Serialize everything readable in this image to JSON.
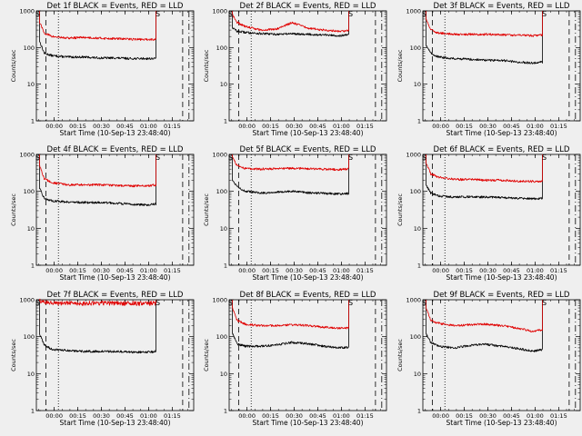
{
  "figure": {
    "common": {
      "ylabel": "Counts/sec",
      "xlabel": "Start Time (10-Sep-13 23:48:40)",
      "x_ticks": [
        "00:00",
        "00:15",
        "00:30",
        "00:45",
        "01:00",
        "01:15"
      ],
      "x_tick_minutes": [
        11.33,
        26.33,
        41.33,
        56.33,
        71.33,
        86.33
      ],
      "y_ticks": [
        "1",
        "10",
        "100",
        "1000"
      ],
      "y_tick_values": [
        1,
        10,
        100,
        1000
      ],
      "xlim_minutes": [
        0,
        100
      ],
      "ylim": [
        1,
        1000
      ],
      "yscale": "log",
      "series_colors": {
        "events": "#000000",
        "lld": "#e00000"
      },
      "marker_label": "S",
      "dashed_line_minutes": [
        6,
        93
      ],
      "dotted_line_minutes": [
        14
      ],
      "dashdot_line_minutes": [
        97
      ],
      "background": "#efefef"
    }
  },
  "chart_data": [
    {
      "type": "line",
      "title": "Det 1f BLACK = Events, RED = LLD",
      "saa_start_min": 2.0,
      "saa_end_min": 76.0,
      "series": [
        {
          "key": "events",
          "x": [
            2,
            5,
            10,
            20,
            30,
            40,
            50,
            60,
            70,
            76
          ],
          "values": [
            150,
            70,
            60,
            55,
            55,
            52,
            52,
            50,
            50,
            50
          ]
        },
        {
          "key": "lld",
          "x": [
            2,
            5,
            10,
            20,
            30,
            40,
            50,
            60,
            70,
            76
          ],
          "values": [
            500,
            250,
            200,
            180,
            190,
            180,
            175,
            170,
            165,
            170
          ]
        }
      ]
    },
    {
      "type": "line",
      "title": "Det 2f BLACK = Events, RED = LLD",
      "saa_start_min": 2.0,
      "saa_end_min": 76.0,
      "series": [
        {
          "key": "events",
          "x": [
            2,
            5,
            10,
            20,
            30,
            40,
            50,
            60,
            70,
            76
          ],
          "values": [
            350,
            280,
            260,
            240,
            230,
            240,
            230,
            220,
            210,
            220
          ]
        },
        {
          "key": "lld",
          "x": [
            2,
            5,
            10,
            20,
            30,
            40,
            50,
            60,
            70,
            76
          ],
          "values": [
            800,
            480,
            380,
            300,
            320,
            480,
            340,
            300,
            280,
            290
          ]
        }
      ]
    },
    {
      "type": "line",
      "title": "Det 3f BLACK = Events, RED = LLD",
      "saa_start_min": 2.0,
      "saa_end_min": 76.0,
      "series": [
        {
          "key": "events",
          "x": [
            2,
            5,
            10,
            20,
            30,
            40,
            50,
            60,
            70,
            76
          ],
          "values": [
            120,
            70,
            55,
            50,
            48,
            45,
            45,
            40,
            38,
            40
          ]
        },
        {
          "key": "lld",
          "x": [
            2,
            5,
            10,
            20,
            30,
            40,
            50,
            60,
            70,
            76
          ],
          "values": [
            600,
            300,
            250,
            230,
            230,
            230,
            220,
            220,
            210,
            220
          ]
        }
      ]
    },
    {
      "type": "line",
      "title": "Det 4f BLACK = Events, RED = LLD",
      "saa_start_min": 2.0,
      "saa_end_min": 76.0,
      "series": [
        {
          "key": "events",
          "x": [
            2,
            5,
            10,
            20,
            30,
            40,
            50,
            60,
            70,
            76
          ],
          "values": [
            120,
            65,
            55,
            52,
            50,
            50,
            48,
            45,
            43,
            45
          ]
        },
        {
          "key": "lld",
          "x": [
            2,
            5,
            10,
            20,
            30,
            40,
            50,
            60,
            70,
            76
          ],
          "values": [
            500,
            220,
            170,
            150,
            150,
            150,
            145,
            140,
            140,
            150
          ]
        }
      ]
    },
    {
      "type": "line",
      "title": "Det 5f BLACK = Events, RED = LLD",
      "saa_start_min": 2.0,
      "saa_end_min": 76.0,
      "series": [
        {
          "key": "events",
          "x": [
            2,
            5,
            10,
            20,
            30,
            40,
            50,
            60,
            70,
            76
          ],
          "values": [
            200,
            140,
            100,
            90,
            95,
            100,
            92,
            88,
            85,
            88
          ]
        },
        {
          "key": "lld",
          "x": [
            2,
            5,
            10,
            20,
            30,
            40,
            50,
            60,
            70,
            76
          ],
          "values": [
            900,
            500,
            420,
            400,
            410,
            420,
            410,
            400,
            390,
            400
          ]
        }
      ]
    },
    {
      "type": "line",
      "title": "Det 6f BLACK = Events, RED = LLD",
      "saa_start_min": 2.0,
      "saa_end_min": 76.0,
      "series": [
        {
          "key": "events",
          "x": [
            2,
            5,
            10,
            20,
            30,
            40,
            50,
            60,
            70,
            76
          ],
          "values": [
            150,
            90,
            75,
            70,
            72,
            70,
            68,
            65,
            63,
            65
          ]
        },
        {
          "key": "lld",
          "x": [
            2,
            5,
            10,
            20,
            30,
            40,
            50,
            60,
            70,
            76
          ],
          "values": [
            600,
            300,
            240,
            210,
            210,
            200,
            200,
            190,
            185,
            190
          ]
        }
      ]
    },
    {
      "type": "line",
      "title": "Det 7f BLACK = Events, RED = LLD",
      "saa_start_min": 2.0,
      "saa_end_min": 76.0,
      "series": [
        {
          "key": "events",
          "x": [
            2,
            5,
            10,
            20,
            30,
            40,
            50,
            60,
            70,
            76
          ],
          "values": [
            120,
            60,
            45,
            42,
            40,
            40,
            40,
            38,
            38,
            40
          ]
        },
        {
          "key": "lld",
          "x": [
            2,
            5,
            10,
            20,
            30,
            40,
            50,
            60,
            70,
            76
          ],
          "values": [
            950,
            850,
            800,
            820,
            800,
            820,
            800,
            790,
            800,
            800
          ]
        }
      ]
    },
    {
      "type": "line",
      "title": "Det 8f BLACK = Events, RED = LLD",
      "saa_start_min": 2.0,
      "saa_end_min": 76.0,
      "series": [
        {
          "key": "events",
          "x": [
            2,
            5,
            10,
            20,
            30,
            40,
            50,
            60,
            70,
            76
          ],
          "values": [
            130,
            65,
            55,
            55,
            60,
            70,
            65,
            55,
            50,
            52
          ]
        },
        {
          "key": "lld",
          "x": [
            2,
            5,
            10,
            20,
            30,
            40,
            50,
            60,
            70,
            76
          ],
          "values": [
            600,
            280,
            220,
            200,
            200,
            210,
            200,
            180,
            170,
            175
          ]
        }
      ]
    },
    {
      "type": "line",
      "title": "Det 9f BLACK = Events, RED = LLD",
      "saa_start_min": 2.0,
      "saa_end_min": 76.0,
      "series": [
        {
          "key": "events",
          "x": [
            2,
            5,
            10,
            20,
            30,
            40,
            50,
            60,
            70,
            76
          ],
          "values": [
            120,
            70,
            55,
            50,
            58,
            62,
            55,
            48,
            40,
            45
          ]
        },
        {
          "key": "lld",
          "x": [
            2,
            5,
            10,
            20,
            30,
            40,
            50,
            60,
            70,
            76
          ],
          "values": [
            600,
            280,
            230,
            200,
            210,
            220,
            200,
            170,
            140,
            155
          ]
        }
      ]
    }
  ]
}
